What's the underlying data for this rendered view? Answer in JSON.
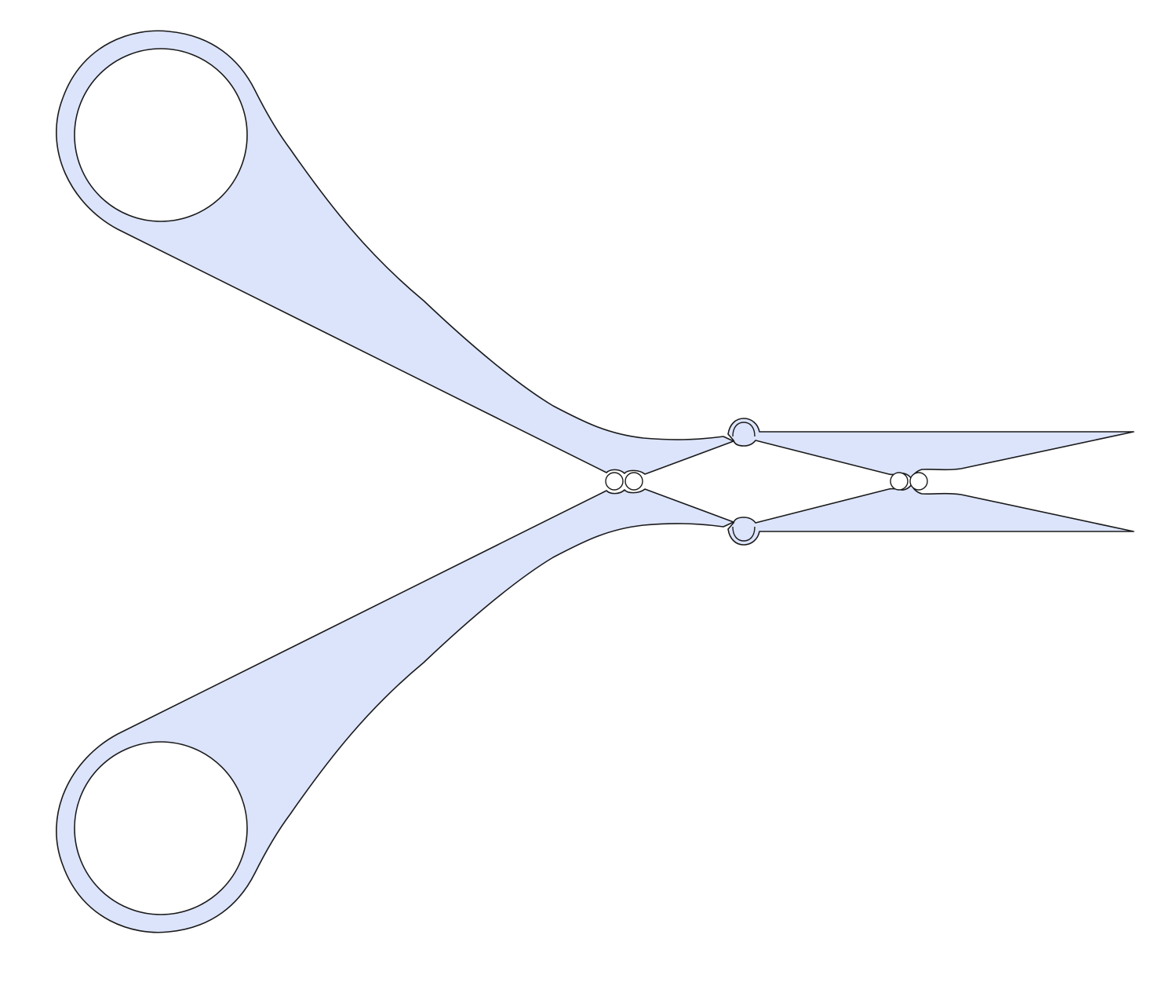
{
  "figure": {
    "description_visible_text": "",
    "shape": "scissors-outline",
    "orientation": "handles-left-blades-right"
  },
  "colors": {
    "background": "#ffffff",
    "fill": "#dce4fc",
    "stroke": "#1a1a1a",
    "hole_fill": "#ffffff"
  }
}
